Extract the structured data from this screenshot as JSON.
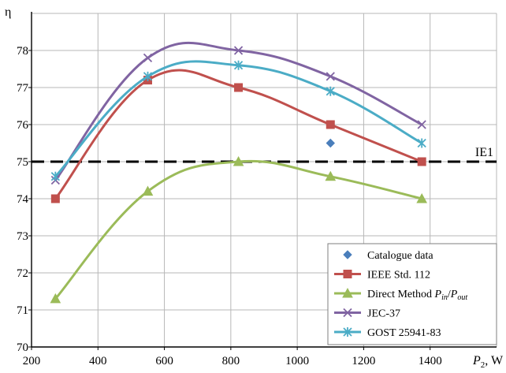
{
  "chart_data": {
    "type": "line",
    "xlabel": "P₂, W",
    "ylabel": "η",
    "xlim": [
      200,
      1600
    ],
    "ylim": [
      70,
      79
    ],
    "xticks": [
      200,
      400,
      600,
      800,
      1000,
      1200,
      1400
    ],
    "yticks": [
      70,
      71,
      72,
      73,
      74,
      75,
      76,
      77,
      78
    ],
    "grid": true,
    "legend_position": "bottom-right",
    "reference_line": {
      "label": "IE1",
      "y": 75,
      "style": "dashed",
      "color": "#000000"
    },
    "series": [
      {
        "name": "Catalogue data",
        "color": "#4a7ebb",
        "marker": "diamond",
        "line": false,
        "x": [
          1100
        ],
        "y": [
          75.5
        ]
      },
      {
        "name": "IEEE Std. 112",
        "color": "#c0504d",
        "marker": "square",
        "line": true,
        "x": [
          272,
          550,
          823,
          1100,
          1375
        ],
        "y": [
          74.0,
          77.2,
          77.0,
          76.0,
          75.0
        ]
      },
      {
        "name": "Direct Method Pin/Pout",
        "color": "#9bbb59",
        "marker": "triangle",
        "line": true,
        "x": [
          272,
          550,
          823,
          1100,
          1375
        ],
        "y": [
          71.3,
          74.2,
          75.0,
          74.6,
          74.0
        ]
      },
      {
        "name": "JEC-37",
        "color": "#8064a2",
        "marker": "x",
        "line": true,
        "x": [
          272,
          550,
          823,
          1100,
          1375
        ],
        "y": [
          74.5,
          77.8,
          78.0,
          77.3,
          76.0
        ]
      },
      {
        "name": "GOST 25941-83",
        "color": "#4bacc6",
        "marker": "star",
        "line": true,
        "x": [
          272,
          550,
          823,
          1100,
          1375
        ],
        "y": [
          74.6,
          77.3,
          77.6,
          76.9,
          75.5
        ]
      }
    ]
  }
}
